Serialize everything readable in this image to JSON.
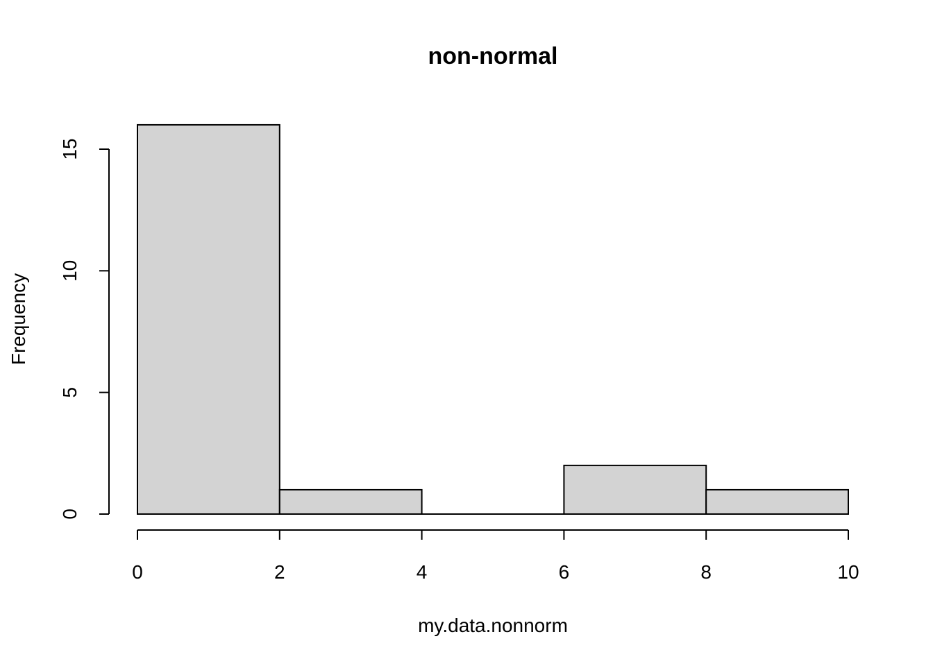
{
  "chart_data": {
    "type": "bar",
    "subtype": "histogram",
    "title": "non-normal",
    "xlabel": "my.data.nonnorm",
    "ylabel": "Frequency",
    "bins": [
      {
        "from": 0,
        "to": 2,
        "count": 16
      },
      {
        "from": 2,
        "to": 4,
        "count": 1
      },
      {
        "from": 4,
        "to": 6,
        "count": 0
      },
      {
        "from": 6,
        "to": 8,
        "count": 2
      },
      {
        "from": 8,
        "to": 10,
        "count": 1
      }
    ],
    "xlim": [
      0,
      10
    ],
    "ylim": [
      0,
      16
    ],
    "x_ticks": [
      0,
      2,
      4,
      6,
      8,
      10
    ],
    "y_ticks": [
      0,
      5,
      10,
      15
    ],
    "grid": false,
    "colors": {
      "bar_fill": "#d3d3d3",
      "bar_stroke": "#000000",
      "background": "#ffffff"
    }
  }
}
